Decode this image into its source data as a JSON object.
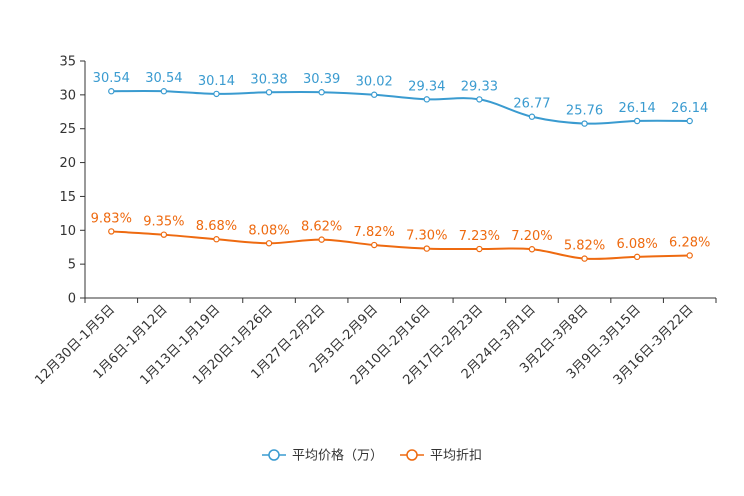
{
  "chart_data": {
    "type": "line",
    "title": "",
    "xlabel": "",
    "ylabel": "",
    "ylim": [
      0,
      35
    ],
    "yticks": [
      0,
      5,
      10,
      15,
      20,
      25,
      30,
      35
    ],
    "grid": false,
    "legend_position": "bottom-center",
    "categories": [
      "12月30日-1月5日",
      "1月6日-1月12日",
      "1月13日-1月19日",
      "1月20日-1月26日",
      "1月27日-2月2日",
      "2月3日-2月9日",
      "2月10日-2月16日",
      "2月17日-2月23日",
      "2月24日-3月1日",
      "3月2日-3月8日",
      "3月9日-3月15日",
      "3月16日-3月22日"
    ],
    "series": [
      {
        "name": "平均价格（万）",
        "color": "#3a9bd0",
        "values": [
          30.54,
          30.54,
          30.14,
          30.38,
          30.39,
          30.02,
          29.34,
          29.33,
          26.77,
          25.76,
          26.14,
          26.14
        ],
        "labels": [
          "30.54",
          "30.54",
          "30.14",
          "30.38",
          "30.39",
          "30.02",
          "29.34",
          "29.33",
          "26.77",
          "25.76",
          "26.14",
          "26.14"
        ]
      },
      {
        "name": "平均折扣",
        "color": "#ee6a10",
        "values": [
          9.83,
          9.35,
          8.68,
          8.08,
          8.62,
          7.82,
          7.3,
          7.23,
          7.2,
          5.82,
          6.08,
          6.28
        ],
        "labels": [
          "9.83%",
          "9.35%",
          "8.68%",
          "8.08%",
          "8.62%",
          "7.82%",
          "7.30%",
          "7.23%",
          "7.20%",
          "5.82%",
          "6.08%",
          "6.28%"
        ]
      }
    ]
  }
}
